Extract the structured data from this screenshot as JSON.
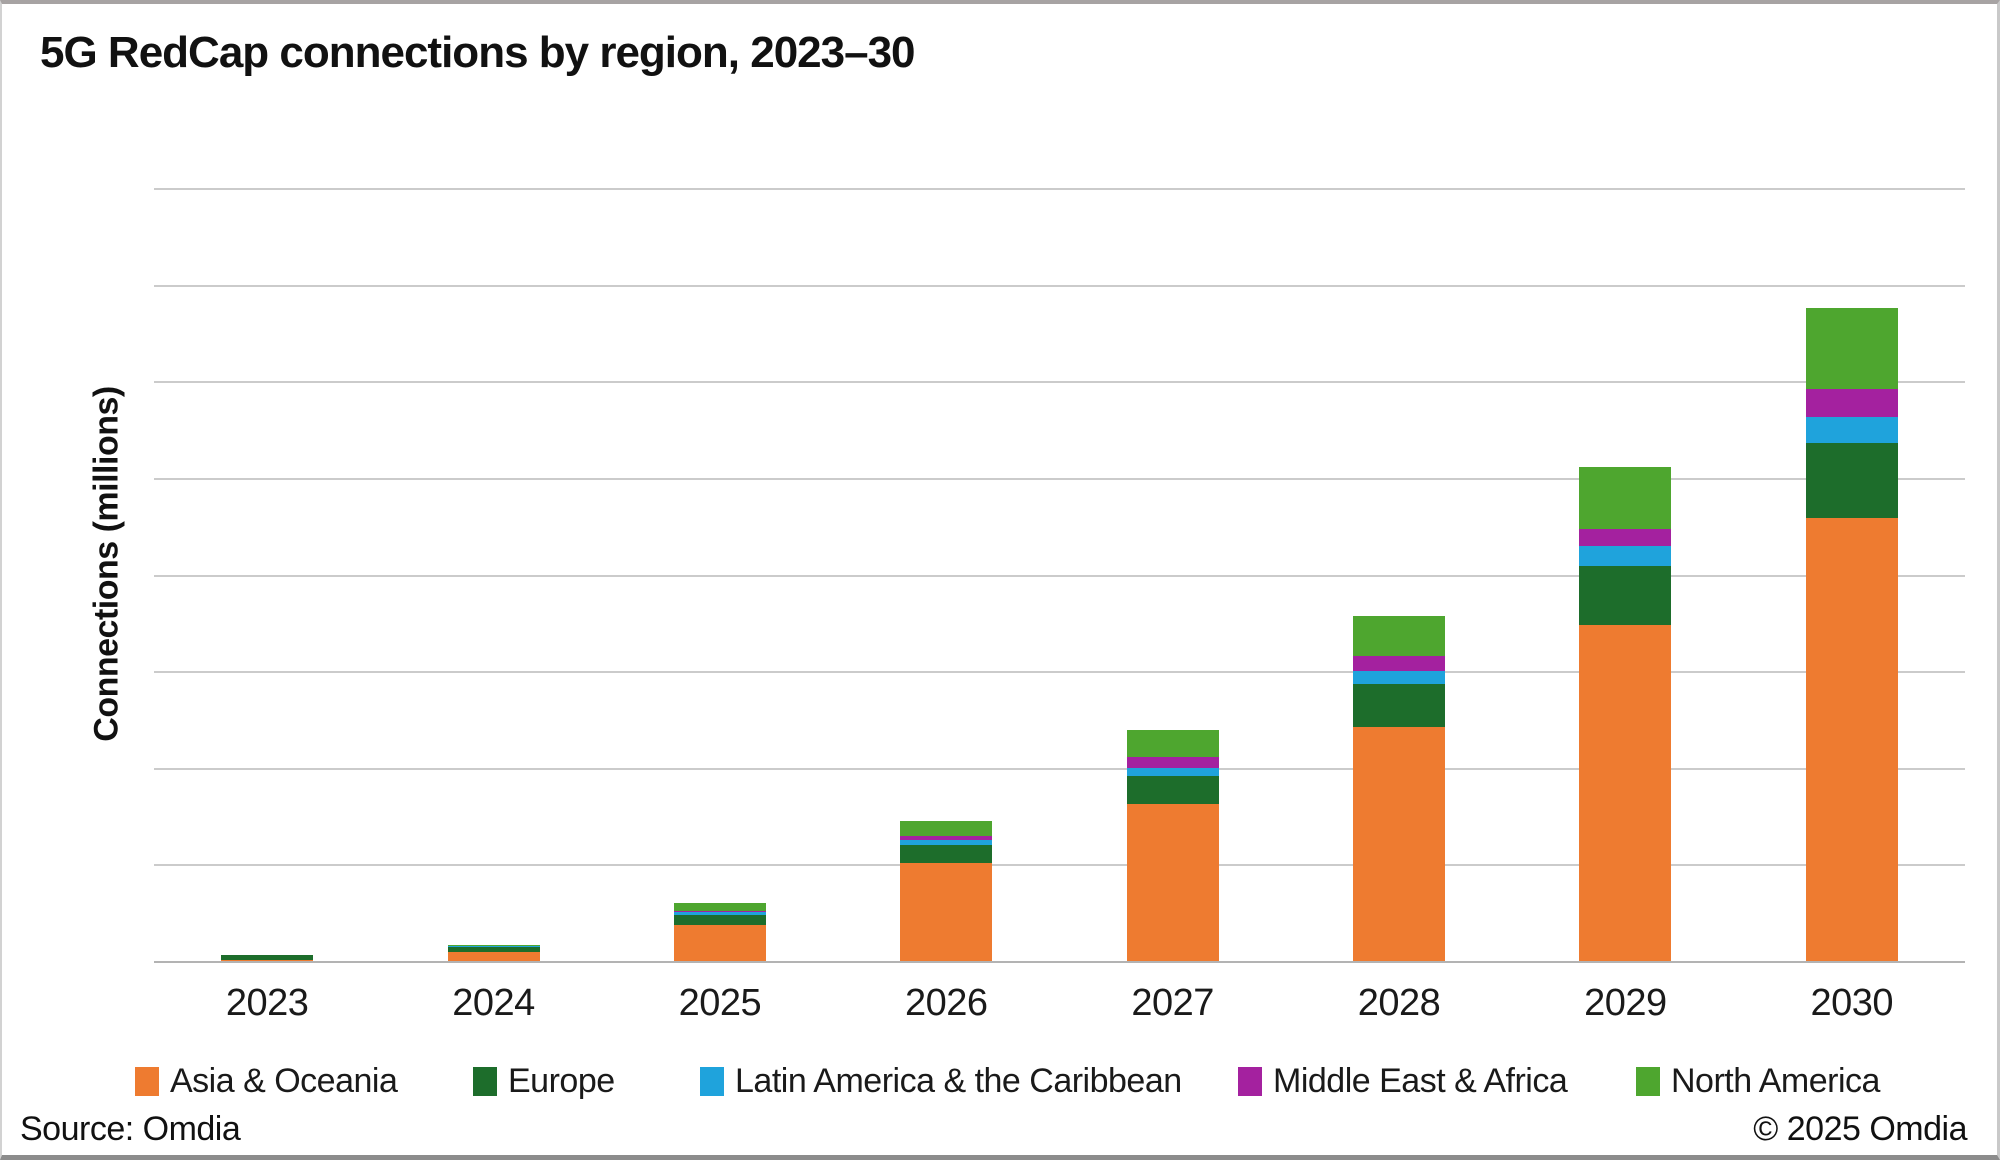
{
  "title": "5G RedCap connections by region, 2023–30",
  "y_axis_label": "Connections (millions)",
  "footer": {
    "source": "Source: Omdia",
    "copyright": "© 2025 Omdia"
  },
  "colors": {
    "asia_oceania": "#EE7B30",
    "europe": "#1D6D2B",
    "latin_america_caribbean": "#1FA3DC",
    "middle_east_africa": "#A4219F",
    "north_america": "#4EA62F",
    "gridline": "#cbcbcb",
    "axis_line": "#b3b3b3",
    "text": "#111111"
  },
  "legend": [
    {
      "label": "Asia & Oceania",
      "color": "#EE7B30"
    },
    {
      "label": "Europe",
      "color": "#1D6D2B"
    },
    {
      "label": "Latin America & the Caribbean",
      "color": "#1FA3DC"
    },
    {
      "label": "Middle East & Africa",
      "color": "#A4219F"
    },
    {
      "label": "North America",
      "color": "#4EA62F"
    }
  ],
  "chart_data": {
    "type": "bar",
    "stacked": true,
    "title": "5G RedCap connections by region, 2023–30",
    "xlabel": "",
    "ylabel": "Connections (millions)",
    "categories": [
      "2023",
      "2024",
      "2025",
      "2026",
      "2027",
      "2028",
      "2029",
      "2030"
    ],
    "series": [
      {
        "name": "Asia & Oceania",
        "color": "#EE7B30",
        "values": [
          1,
          9,
          37,
          101,
          163,
          242,
          348,
          459
        ]
      },
      {
        "name": "Europe",
        "color": "#1D6D2B",
        "values": [
          5,
          6,
          11,
          19,
          28,
          45,
          61,
          77
        ]
      },
      {
        "name": "Latin America & the Caribbean",
        "color": "#1FA3DC",
        "values": [
          0,
          1,
          3,
          5,
          9,
          13,
          21,
          27
        ]
      },
      {
        "name": "Middle East & Africa",
        "color": "#A4219F",
        "values": [
          0,
          0,
          1,
          4,
          11,
          16,
          17,
          29
        ]
      },
      {
        "name": "North America",
        "color": "#4EA62F",
        "values": [
          0,
          1,
          8,
          16,
          28,
          41,
          64,
          84
        ]
      }
    ],
    "totals": [
      6,
      17,
      60,
      145,
      239,
      357,
      511,
      676
    ],
    "ylim": [
      0,
      800
    ],
    "gridline_interval": 100,
    "y_tick_labels_visible": false,
    "grid": "horizontal",
    "legend_position": "bottom"
  }
}
